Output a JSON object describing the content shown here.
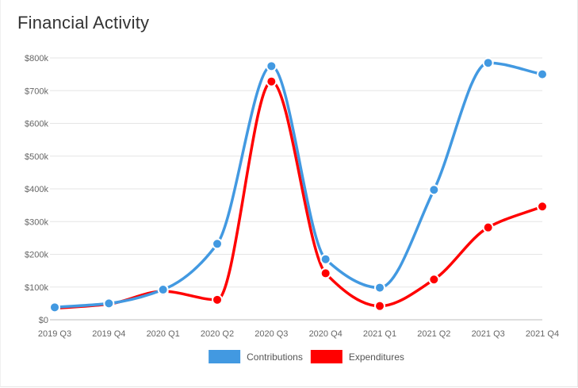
{
  "chart_data": {
    "type": "line",
    "title": "Financial Activity",
    "categories": [
      "2019 Q3",
      "2019 Q4",
      "2020 Q1",
      "2020 Q2",
      "2020 Q3",
      "2020 Q4",
      "2021 Q1",
      "2021 Q2",
      "2021 Q3",
      "2021 Q4"
    ],
    "y_ticks": [
      "$0",
      "$100k",
      "$200k",
      "$300k",
      "$400k",
      "$500k",
      "$600k",
      "$700k",
      "$800k"
    ],
    "ylim": [
      0,
      800000
    ],
    "grid": true,
    "legend_position": "bottom",
    "series": [
      {
        "name": "Contributions",
        "color": "#4299e1",
        "values": [
          38000,
          50000,
          92000,
          232000,
          775000,
          185000,
          98000,
          397000,
          785000,
          750000
        ]
      },
      {
        "name": "Expenditures",
        "color": "#ff0000",
        "values": [
          35000,
          48000,
          87000,
          61000,
          728000,
          142000,
          42000,
          123000,
          282000,
          346000
        ]
      }
    ]
  }
}
